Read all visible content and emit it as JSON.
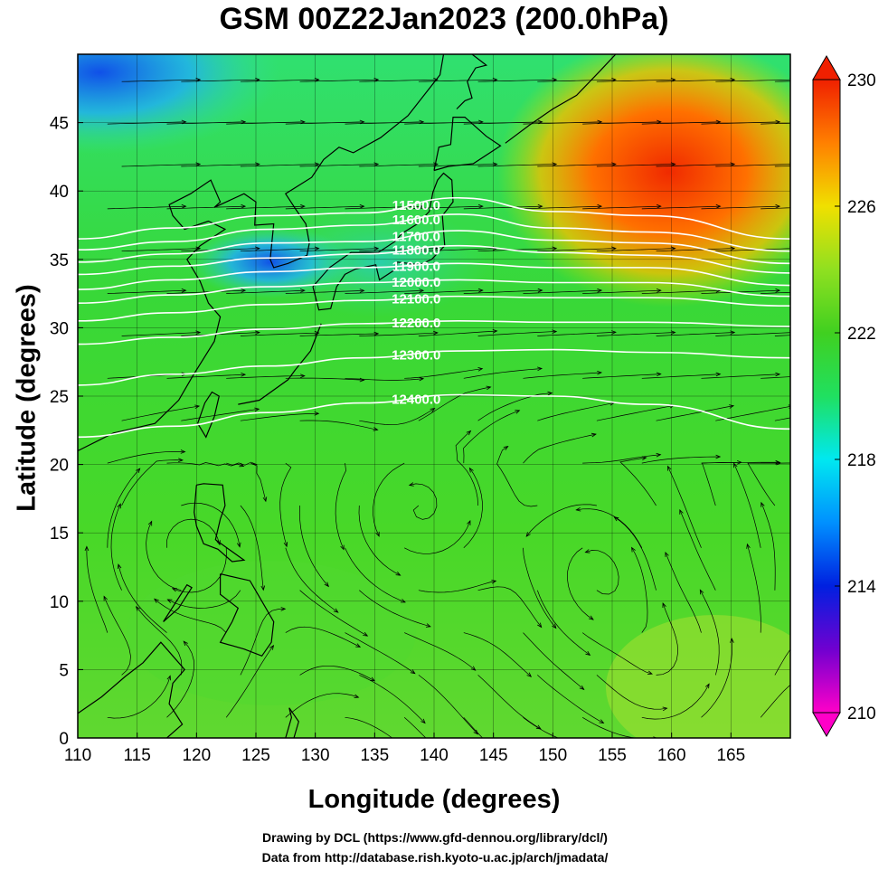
{
  "title": "GSM 00Z22Jan2023 (200.0hPa)",
  "xlabel": "Longitude (degrees)",
  "ylabel": "Latitude  (degrees)",
  "credits": {
    "line1": "Drawing by DCL (https://www.gfd-dennou.org/library/dcl/)",
    "line2": "Data from http://database.rish.kyoto-u.ac.jp/arch/jmadata/"
  },
  "chart_data": {
    "type": "heatmap",
    "x_range": [
      110,
      170
    ],
    "y_range": [
      0,
      50
    ],
    "x_ticks": [
      110,
      115,
      120,
      125,
      130,
      135,
      140,
      145,
      150,
      155,
      160,
      165
    ],
    "y_ticks": [
      0,
      5,
      10,
      15,
      20,
      25,
      30,
      35,
      40,
      45
    ],
    "colorbar": {
      "range": [
        210,
        230
      ],
      "tick_labels": [
        210,
        214,
        218,
        222,
        226,
        230
      ],
      "colors": [
        "#ff00c8",
        "#7000d0",
        "#0020e0",
        "#0090ff",
        "#00e8f0",
        "#20e060",
        "#40d020",
        "#90e020",
        "#f0e000",
        "#ff8000",
        "#f02000"
      ]
    },
    "contours": [
      {
        "label": "11500.0",
        "y": [
          36.5,
          37.3,
          38.2,
          38.4,
          39.5,
          38.5,
          38.2,
          36.5
        ]
      },
      {
        "label": "11600.0",
        "y": [
          35.7,
          36.3,
          37.2,
          37.5,
          38.3,
          37.3,
          37.0,
          35.6
        ]
      },
      {
        "label": "11700.0",
        "y": [
          34.8,
          35.4,
          36.2,
          36.3,
          37.1,
          36.4,
          36.2,
          34.7
        ]
      },
      {
        "label": "11800.0",
        "y": [
          33.9,
          34.5,
          35.1,
          35.4,
          36.0,
          35.5,
          35.3,
          34.0
        ]
      },
      {
        "label": "11900.0",
        "y": [
          32.8,
          33.5,
          34.1,
          34.4,
          34.7,
          34.4,
          34.4,
          33.1
        ]
      },
      {
        "label": "12000.0",
        "y": [
          31.8,
          32.4,
          33.0,
          33.3,
          33.5,
          33.3,
          33.3,
          32.3
        ]
      },
      {
        "label": "12100.0",
        "y": [
          30.5,
          31.1,
          31.7,
          32.0,
          32.3,
          32.2,
          32.2,
          31.6
        ]
      },
      {
        "label": "12200.0",
        "y": [
          28.8,
          29.3,
          29.9,
          30.3,
          30.5,
          30.4,
          30.4,
          30.1
        ]
      },
      {
        "label": "12300.0",
        "y": [
          25.8,
          26.6,
          27.2,
          27.8,
          28.3,
          28.4,
          28.2,
          27.8
        ]
      },
      {
        "label": "12400.0",
        "y": [
          22.0,
          22.8,
          23.8,
          24.5,
          25.1,
          25.0,
          24.4,
          22.6
        ]
      }
    ]
  }
}
